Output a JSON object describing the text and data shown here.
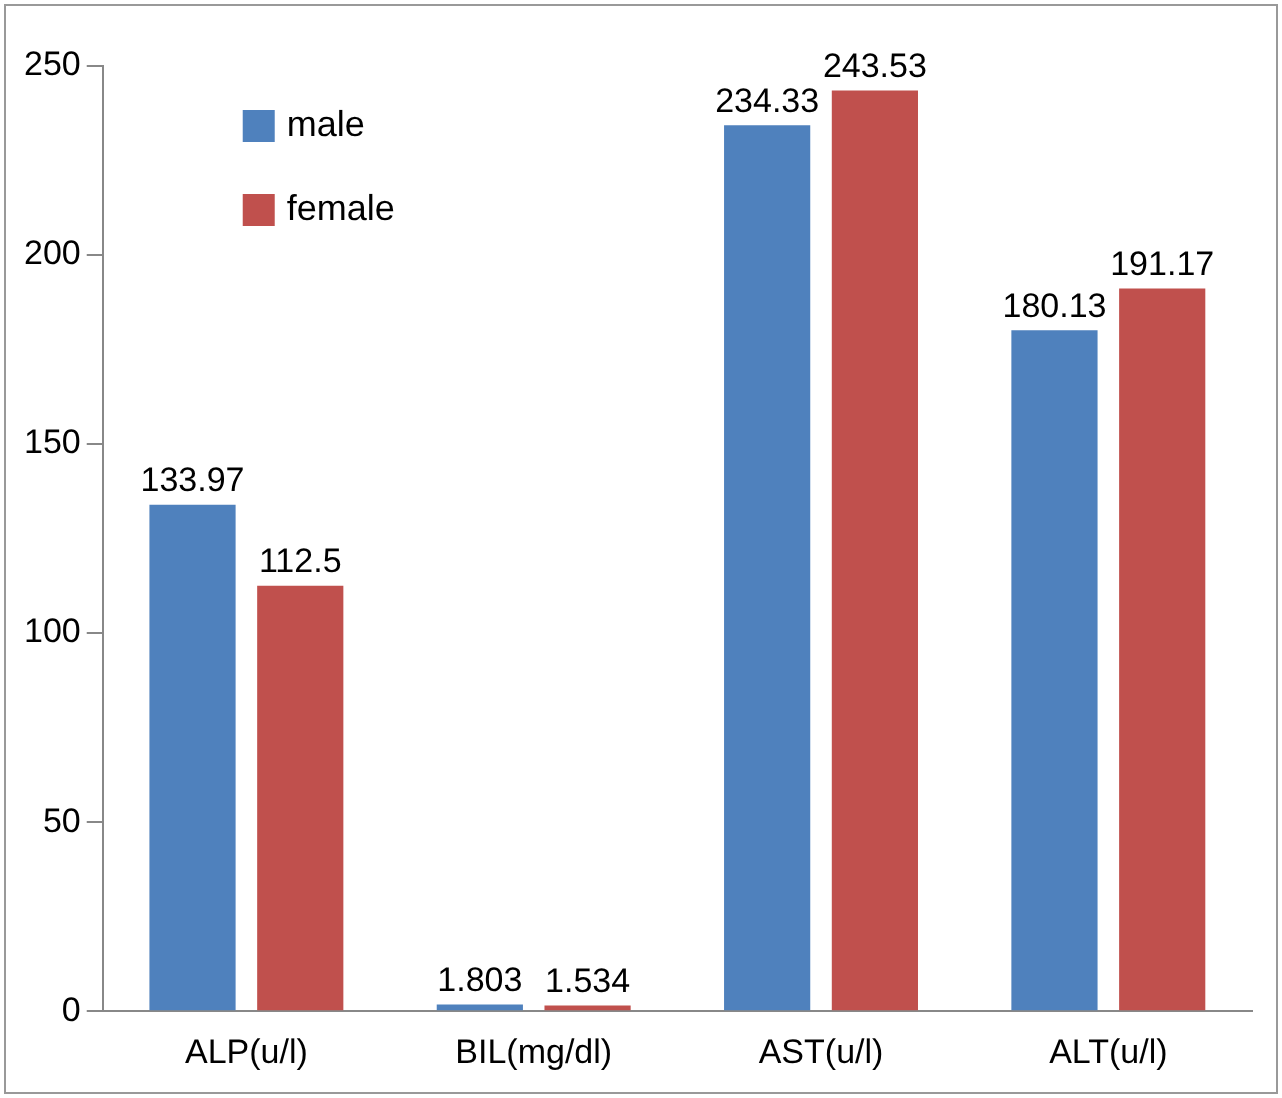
{
  "chart_data": {
    "type": "bar",
    "categories": [
      "ALP(u/l)",
      "BIL(mg/dl)",
      "AST(u/l)",
      "ALT(u/l)"
    ],
    "series": [
      {
        "name": "male",
        "color": "#4f81bd",
        "values": [
          133.97,
          1.803,
          234.33,
          180.13
        ]
      },
      {
        "name": "female",
        "color": "#c0504d",
        "values": [
          112.5,
          1.534,
          243.53,
          191.17
        ]
      }
    ],
    "ylim": [
      0,
      250
    ],
    "yticks": [
      0,
      50,
      100,
      150,
      200,
      250
    ],
    "grid": false,
    "legend": "top left",
    "data_labels": true
  }
}
